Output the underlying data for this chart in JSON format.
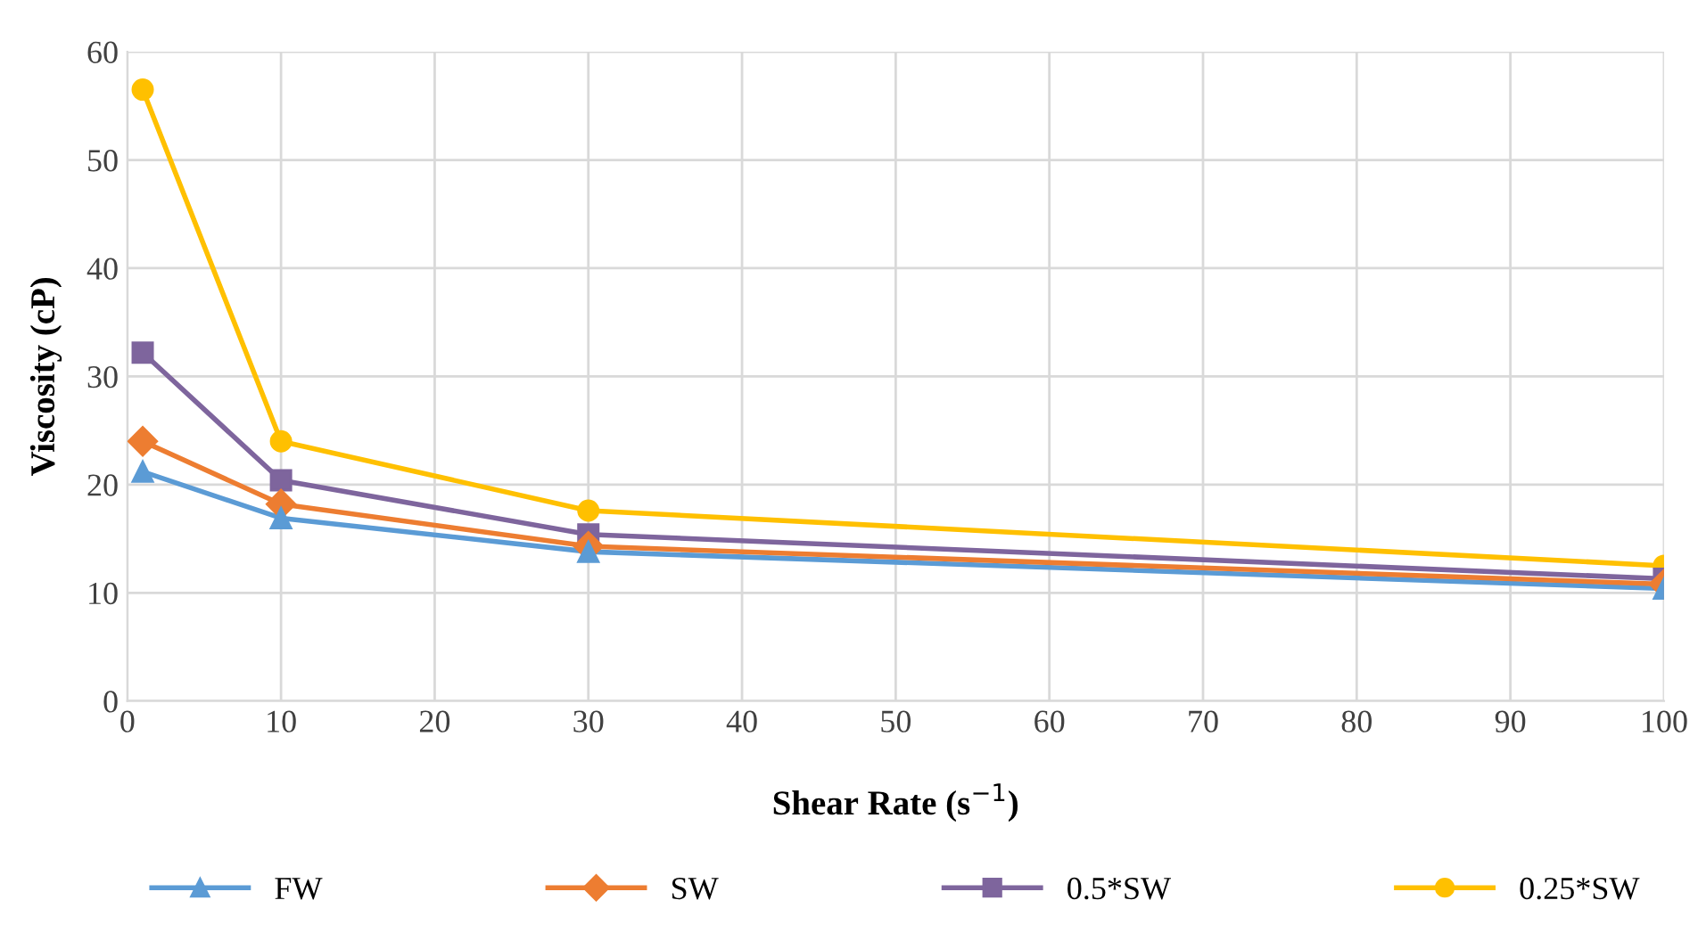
{
  "chart_data": {
    "type": "line",
    "xlabel": "Shear Rate (s$^{−1}$)",
    "ylabel": "Viscosity (cP)",
    "x": [
      1,
      10,
      30,
      100
    ],
    "series": [
      {
        "name": "FW",
        "color": "#5b9bd5",
        "marker": "triangle",
        "values": [
          21.2,
          16.9,
          13.8,
          10.4
        ]
      },
      {
        "name": "SW",
        "color": "#ed7d31",
        "marker": "diamond",
        "values": [
          24,
          18.2,
          14.3,
          10.8
        ]
      },
      {
        "name": "0.5*SW",
        "color": "#7e659d",
        "marker": "square",
        "values": [
          32.2,
          20.4,
          15.4,
          11.3
        ]
      },
      {
        "name": "0.25*SW",
        "color": "#ffc000",
        "marker": "circle",
        "values": [
          56.5,
          24,
          17.6,
          12.5
        ]
      }
    ],
    "xlim": [
      0,
      100
    ],
    "xticks": [
      0,
      10,
      20,
      30,
      40,
      50,
      60,
      70,
      80,
      90,
      100
    ],
    "ylim": [
      0,
      60
    ],
    "yticks": [
      0,
      10,
      20,
      30,
      40,
      50,
      60
    ],
    "grid": true,
    "legend": "bottom",
    "line_style": "solid"
  }
}
